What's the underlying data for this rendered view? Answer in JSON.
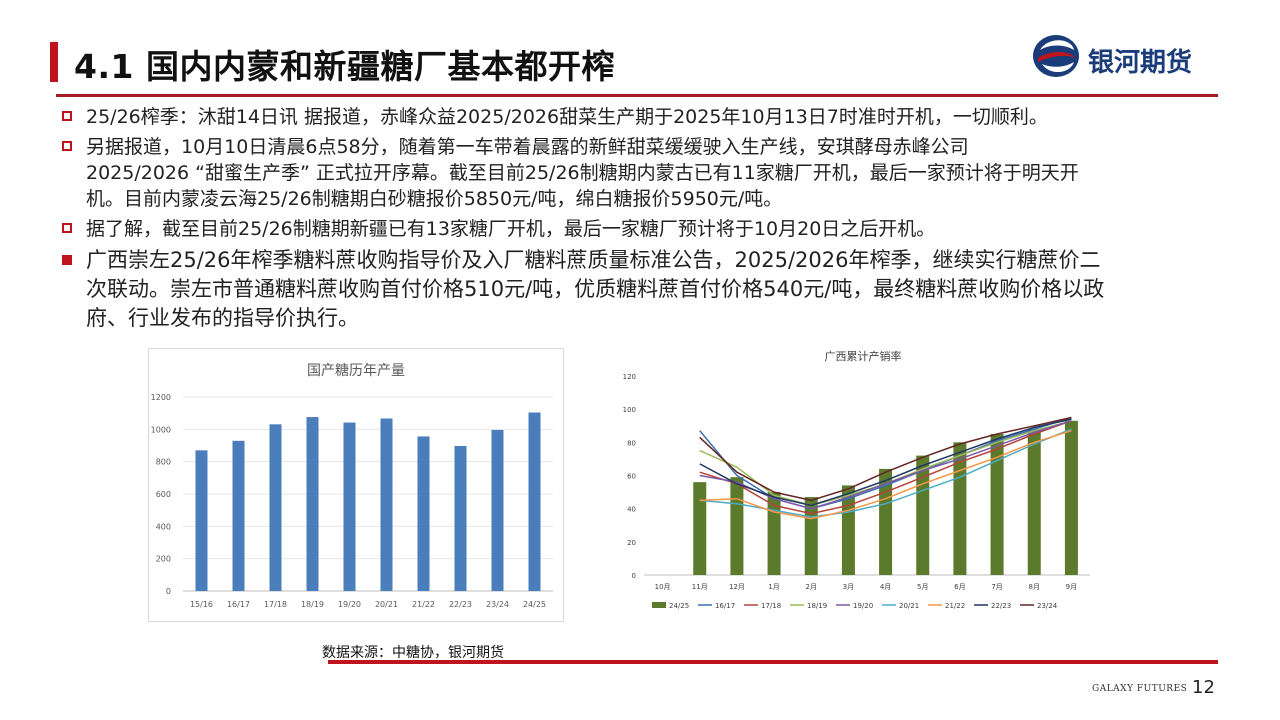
{
  "header": {
    "title": "4.1 国内内蒙和新疆糖厂基本都开榨",
    "logo_text": "银河期货"
  },
  "bullets": [
    {
      "style": "hollow",
      "lines": [
        "25/26榨季：沐甜14日讯 据报道，赤峰众益2025/2026甜菜生产期于2025年10月13日7时准时开机，一切顺利。"
      ]
    },
    {
      "style": "hollow",
      "lines": [
        "另据报道，10月10日清晨6点58分，随着第一车带着晨露的新鲜甜菜缓缓驶入生产线，安琪酵母赤峰公司",
        "2025/2026 “甜蜜生产季” 正式拉开序幕。截至目前25/26制糖期内蒙古已有11家糖厂开机，最后一家预计将于明天开",
        "机。目前内蒙凌云海25/26制糖期白砂糖报价5850元/吨，绵白糖报价5950元/吨。"
      ]
    },
    {
      "style": "hollow",
      "lines": [
        "据了解，截至目前25/26制糖期新疆已有13家糖厂开机，最后一家糖厂预计将于10月20日之后开机。"
      ]
    },
    {
      "style": "solid",
      "lines": [
        "广西崇左25/26年榨季糖料蔗收购指导价及入厂糖料蔗质量标准公告，2025/2026年榨季，继续实行糖蔗价二",
        "次联动。崇左市普通糖料蔗收购首付价格510元/吨，优质糖料蔗首付价格540元/吨，最终糖料蔗收购价格以政",
        "府、行业发布的指导价执行。"
      ]
    }
  ],
  "chart_data": [
    {
      "type": "bar",
      "title": "国产糖历年产量",
      "categories": [
        "15/16",
        "16/17",
        "17/18",
        "18/19",
        "19/20",
        "20/21",
        "21/22",
        "22/23",
        "23/24",
        "24/25"
      ],
      "values": [
        870,
        929,
        1031,
        1076,
        1042,
        1067,
        956,
        897,
        996,
        1104
      ],
      "ylim": [
        0,
        1200
      ],
      "yticks": [
        0,
        200,
        400,
        600,
        800,
        1000,
        1200
      ],
      "color": "#4a7ebb",
      "grid": true
    },
    {
      "type": "bar+line",
      "title": "广西累计产销率",
      "categories": [
        "10月",
        "11月",
        "12月",
        "1月",
        "2月",
        "3月",
        "4月",
        "5月",
        "6月",
        "7月",
        "8月",
        "9月"
      ],
      "ylim": [
        0,
        120
      ],
      "yticks": [
        0,
        20,
        40,
        60,
        80,
        100,
        120
      ],
      "bar_series": {
        "name": "24/25",
        "color": "#5b7a2c",
        "values": [
          null,
          56,
          59,
          50,
          47,
          54,
          64,
          72,
          80,
          85,
          88,
          93
        ]
      },
      "series": [
        {
          "name": "16/17",
          "color": "#3a6eb5",
          "values": [
            null,
            87,
            60,
            46,
            40,
            46,
            54,
            63,
            72,
            81,
            88,
            95
          ]
        },
        {
          "name": "17/18",
          "color": "#b5433a",
          "values": [
            null,
            62,
            55,
            42,
            37,
            42,
            50,
            59,
            68,
            76,
            85,
            93
          ]
        },
        {
          "name": "18/19",
          "color": "#9bbb59",
          "values": [
            null,
            75,
            65,
            48,
            42,
            48,
            55,
            64,
            72,
            80,
            87,
            93
          ]
        },
        {
          "name": "19/20",
          "color": "#7e57a8",
          "values": [
            null,
            60,
            56,
            46,
            40,
            47,
            55,
            63,
            70,
            78,
            86,
            93
          ]
        },
        {
          "name": "20/21",
          "color": "#4bacc6",
          "values": [
            null,
            45,
            43,
            39,
            35,
            38,
            43,
            51,
            59,
            69,
            79,
            88
          ]
        },
        {
          "name": "21/22",
          "color": "#f79646",
          "values": [
            null,
            45,
            46,
            38,
            34,
            39,
            46,
            55,
            63,
            71,
            80,
            87
          ]
        },
        {
          "name": "22/23",
          "color": "#1f3864",
          "values": [
            null,
            67,
            55,
            47,
            42,
            49,
            57,
            66,
            74,
            82,
            89,
            94
          ]
        },
        {
          "name": "23/24",
          "color": "#632523",
          "values": [
            null,
            83,
            62,
            50,
            45,
            52,
            62,
            71,
            79,
            85,
            90,
            95
          ]
        }
      ],
      "legend": "bottom"
    }
  ],
  "source": "数据来源：中糖协，银河期货",
  "footer": {
    "brand": "GALAXY FUTURES",
    "page": "12"
  },
  "colors": {
    "accent": "#c0141c",
    "bar1": "#4a7ebb",
    "bar2": "#5b7a2c"
  }
}
